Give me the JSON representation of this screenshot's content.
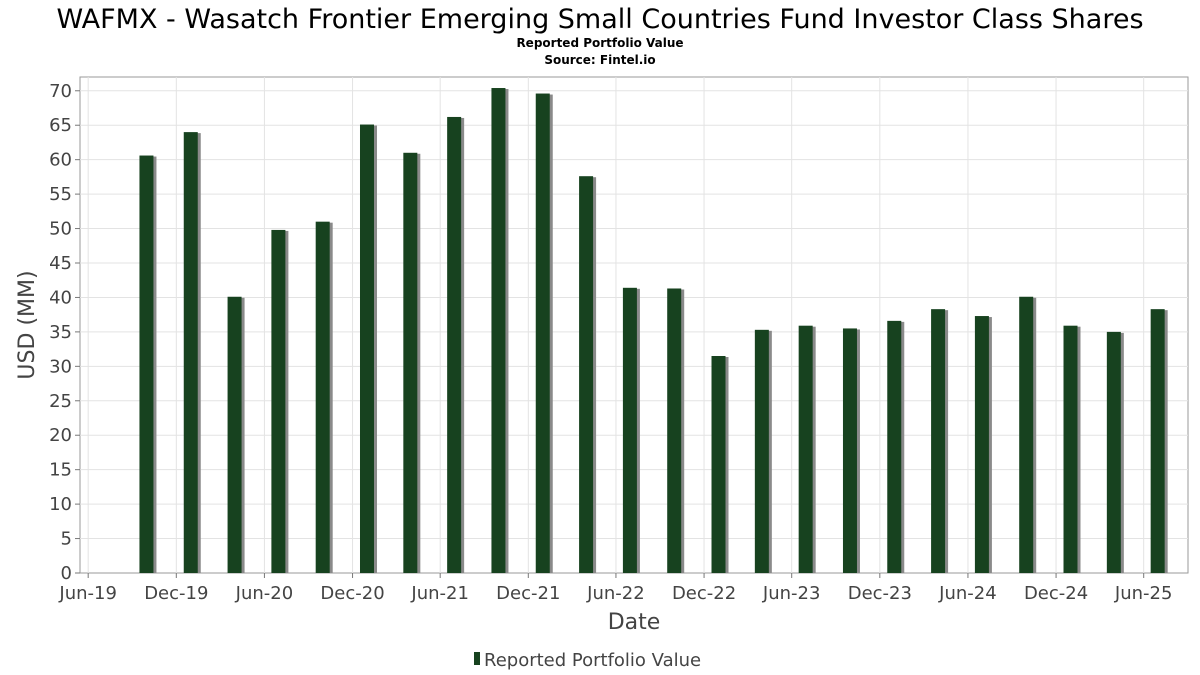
{
  "chart_data": {
    "type": "bar",
    "title": "WAFMX - Wasatch Frontier Emerging Small Countries Fund Investor Class Shares",
    "subtitle": "Reported Portfolio Value",
    "source": "Source: Fintel.io",
    "xlabel": "Date",
    "ylabel": "USD (MM)",
    "ylim": [
      0,
      72
    ],
    "yticks": [
      0,
      5,
      10,
      15,
      20,
      25,
      30,
      35,
      40,
      45,
      50,
      55,
      60,
      65,
      70
    ],
    "x_range": [
      "2019-05-15",
      "2025-09-01"
    ],
    "xticks": [
      {
        "label": "Jun-19",
        "date": "2019-06-01"
      },
      {
        "label": "Dec-19",
        "date": "2019-12-01"
      },
      {
        "label": "Jun-20",
        "date": "2020-06-01"
      },
      {
        "label": "Dec-20",
        "date": "2020-12-01"
      },
      {
        "label": "Jun-21",
        "date": "2021-06-01"
      },
      {
        "label": "Dec-21",
        "date": "2021-12-01"
      },
      {
        "label": "Jun-22",
        "date": "2022-06-01"
      },
      {
        "label": "Dec-22",
        "date": "2022-12-01"
      },
      {
        "label": "Jun-23",
        "date": "2023-06-01"
      },
      {
        "label": "Dec-23",
        "date": "2023-12-01"
      },
      {
        "label": "Jun-24",
        "date": "2024-06-01"
      },
      {
        "label": "Dec-24",
        "date": "2024-12-01"
      },
      {
        "label": "Jun-25",
        "date": "2025-06-01"
      }
    ],
    "grid": true,
    "legend": {
      "position": "bottom-center"
    },
    "series": [
      {
        "name": "Reported Portfolio Value",
        "color": "#17421f",
        "shadow_color": "#8a8a8a",
        "x": [
          "2019-09-30",
          "2019-12-31",
          "2020-03-31",
          "2020-06-30",
          "2020-09-30",
          "2020-12-31",
          "2021-03-31",
          "2021-06-30",
          "2021-09-30",
          "2021-12-31",
          "2022-03-31",
          "2022-06-30",
          "2022-09-30",
          "2022-12-31",
          "2023-03-31",
          "2023-06-30",
          "2023-09-30",
          "2023-12-31",
          "2024-03-31",
          "2024-06-30",
          "2024-09-30",
          "2024-12-31",
          "2025-03-31",
          "2025-06-30"
        ],
        "values": [
          60.6,
          64.0,
          40.1,
          49.8,
          51.0,
          65.1,
          61.0,
          66.2,
          70.4,
          69.6,
          57.6,
          41.4,
          41.3,
          31.5,
          35.3,
          35.9,
          35.5,
          36.6,
          38.3,
          37.3,
          40.1,
          35.9,
          35.0,
          38.3
        ]
      }
    ]
  }
}
